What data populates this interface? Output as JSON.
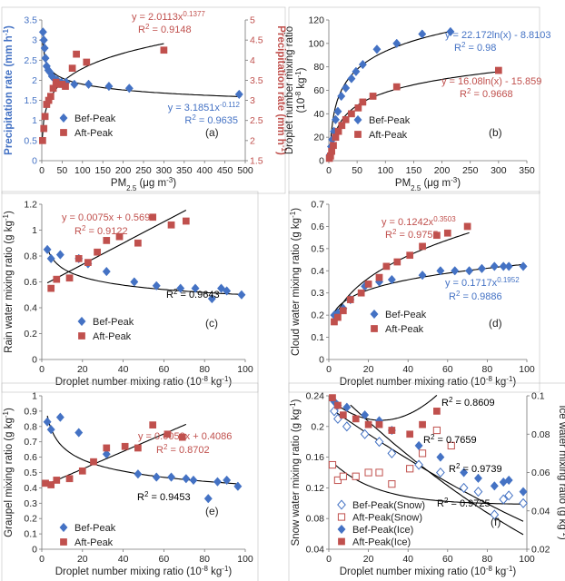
{
  "chart_data": [
    {
      "panel_label": "(a)",
      "type": "scatter",
      "x_label": "PM2.5 (μg m-3)",
      "x_ticks": [
        "0",
        "50",
        "100",
        "150",
        "200",
        "250",
        "300",
        "350",
        "400",
        "450",
        "500"
      ],
      "y_label": "Precipitation rate (mm h-1)",
      "y_ticks": [
        "0",
        "0.5",
        "1",
        "1.5",
        "2",
        "2.5",
        "3",
        "3.5"
      ],
      "y2_label": "Precipitation rate (mm h-1)",
      "y2_ticks": [
        "1.5",
        "2",
        "2.5",
        "3",
        "3.5",
        "4",
        "4.5",
        "5"
      ],
      "xlim": [
        0,
        500
      ],
      "ylim": [
        0,
        3.5
      ],
      "y2lim": [
        1.5,
        5
      ],
      "colors": {
        "bef": "#4472c4",
        "aft": "#c0504d"
      },
      "series": [
        {
          "name": "Bef-Peak",
          "marker": "diamond",
          "axis": "left",
          "x": [
            3,
            5,
            7,
            9,
            12,
            16,
            20,
            25,
            30,
            38,
            48,
            60,
            80,
            115,
            165,
            215,
            485
          ],
          "y": [
            3.2,
            3.0,
            2.8,
            2.55,
            2.35,
            2.25,
            2.2,
            2.1,
            2.05,
            2.0,
            1.95,
            1.95,
            1.9,
            1.9,
            1.85,
            1.8,
            1.65
          ]
        },
        {
          "name": "Aft-Peak",
          "marker": "square",
          "axis": "right",
          "x": [
            2,
            5,
            8,
            12,
            17,
            22,
            28,
            35,
            42,
            50,
            58,
            75,
            85,
            110,
            300
          ],
          "y": [
            2.0,
            2.3,
            2.6,
            2.9,
            3.0,
            3.1,
            3.3,
            3.45,
            3.4,
            3.4,
            3.35,
            3.8,
            4.15,
            3.95,
            4.25
          ]
        }
      ],
      "annotations": [
        {
          "text": "y = 2.0113x",
          "sup": "0.1377",
          "color": "#c0504d"
        },
        {
          "text": "R² = 0.9148",
          "color": "#c0504d"
        },
        {
          "text": "y = 3.1851x",
          "sup": "-0.112",
          "color": "#4472c4"
        },
        {
          "text": "R² = 0.9635",
          "color": "#4472c4"
        }
      ]
    },
    {
      "panel_label": "(b)",
      "type": "scatter",
      "x_label": "PM2.5 (μg m-3)",
      "x_ticks": [
        "0",
        "50",
        "100",
        "150",
        "200",
        "250",
        "300",
        "350"
      ],
      "y_label": "Droplet number mixing ratio",
      "y_label2": "(10-8 kg-1)",
      "y_ticks": [
        "0",
        "20",
        "40",
        "60",
        "80",
        "100",
        "120"
      ],
      "xlim": [
        0,
        350
      ],
      "ylim": [
        0,
        120
      ],
      "series": [
        {
          "name": "Bef-Peak",
          "marker": "diamond",
          "x": [
            2,
            4,
            6,
            9,
            12,
            16,
            22,
            30,
            40,
            48,
            60,
            85,
            120,
            165,
            215
          ],
          "y": [
            5,
            12,
            18,
            25,
            35,
            42,
            55,
            62,
            70,
            76,
            82,
            95,
            100,
            108,
            110
          ]
        },
        {
          "name": "Aft-Peak",
          "marker": "square",
          "x": [
            1,
            3,
            5,
            8,
            12,
            17,
            23,
            30,
            40,
            52,
            60,
            78,
            120,
            300
          ],
          "y": [
            2,
            4,
            8,
            13,
            20,
            25,
            30,
            35,
            40,
            45,
            50,
            55,
            63,
            77
          ]
        }
      ],
      "annotations": [
        {
          "text": "y = 22.172ln(x) - 8.8103",
          "color": "#4472c4"
        },
        {
          "text": "R² = 0.98",
          "color": "#4472c4"
        },
        {
          "text": "y = 16.08ln(x) - 15.859",
          "color": "#c0504d"
        },
        {
          "text": "R² = 0.9668",
          "color": "#c0504d"
        }
      ]
    },
    {
      "panel_label": "(c)",
      "type": "scatter",
      "x_label": "Droplet number mixing ratio (10-8 kg-1)",
      "x_ticks": [
        "0",
        "20",
        "40",
        "60",
        "80",
        "100"
      ],
      "y_label": "Rain water mixing ratio (g kg-1)",
      "y_ticks": [
        "0",
        "0.2",
        "0.4",
        "0.6",
        "0.8",
        "1",
        "1.2"
      ],
      "xlim": [
        0,
        110
      ],
      "ylim": [
        0,
        1.2
      ],
      "series": [
        {
          "name": "Bef-Peak",
          "marker": "diamond",
          "x": [
            3,
            5,
            10,
            20,
            25,
            35,
            50,
            62,
            75,
            83,
            92,
            97,
            100,
            108
          ],
          "y": [
            0.85,
            0.78,
            0.81,
            0.78,
            0.74,
            0.68,
            0.6,
            0.57,
            0.55,
            0.55,
            0.47,
            0.55,
            0.53,
            0.5
          ]
        },
        {
          "name": "Aft-Peak",
          "marker": "square",
          "x": [
            5,
            8,
            15,
            20,
            25,
            30,
            35,
            42,
            52,
            60,
            70,
            78
          ],
          "y": [
            0.55,
            0.62,
            0.63,
            0.78,
            0.75,
            0.83,
            0.92,
            0.95,
            0.9,
            1.1,
            1.04,
            1.07
          ]
        }
      ],
      "annotations": [
        {
          "text": "y = 0.0075x + 0.5695",
          "color": "#c0504d"
        },
        {
          "text": "R² = 0.9122",
          "color": "#c0504d"
        },
        {
          "text": "R² = 0.9643",
          "color": "#000000"
        }
      ]
    },
    {
      "panel_label": "(d)",
      "type": "scatter",
      "x_label": "Droplet number mixing ratio (10-8 kg-1)",
      "x_ticks": [
        "0",
        "20",
        "40",
        "60",
        "80",
        "100"
      ],
      "y_label": "Cloud water mixing ratio (g kg-1)",
      "y_ticks": [
        "0",
        "0.1",
        "0.2",
        "0.3",
        "0.4",
        "0.5",
        "0.6",
        "0.7"
      ],
      "xlim": [
        0,
        110
      ],
      "ylim": [
        0,
        0.7
      ],
      "series": [
        {
          "name": "Bef-Peak",
          "marker": "diamond",
          "x": [
            3,
            5,
            8,
            12,
            20,
            28,
            35,
            52,
            62,
            70,
            78,
            85,
            92,
            97,
            100,
            108
          ],
          "y": [
            0.2,
            0.21,
            0.23,
            0.27,
            0.33,
            0.35,
            0.36,
            0.38,
            0.4,
            0.4,
            0.4,
            0.41,
            0.42,
            0.42,
            0.42,
            0.42
          ]
        },
        {
          "name": "Aft-Peak",
          "marker": "square",
          "x": [
            3,
            5,
            8,
            12,
            18,
            22,
            28,
            32,
            38,
            45,
            52,
            60,
            66,
            77
          ],
          "y": [
            0.17,
            0.19,
            0.22,
            0.27,
            0.3,
            0.34,
            0.37,
            0.42,
            0.44,
            0.47,
            0.51,
            0.56,
            0.57,
            0.6
          ]
        }
      ],
      "annotations": [
        {
          "text": "y = 0.1242x",
          "sup": "0.3503",
          "color": "#c0504d"
        },
        {
          "text": "R² = 0.9755",
          "color": "#c0504d"
        },
        {
          "text": "y = 0.1717x",
          "sup": "0.1952",
          "color": "#4472c4"
        },
        {
          "text": "R² = 0.9886",
          "color": "#4472c4"
        }
      ]
    },
    {
      "panel_label": "(e)",
      "type": "scatter",
      "x_label": "Droplet number mixing ratio (10-8 kg-1)",
      "x_ticks": [
        "0",
        "20",
        "40",
        "60",
        "80",
        "100"
      ],
      "y_label": "Graupel mixing ratio (g kg-1)",
      "y_ticks": [
        "0",
        "0.1",
        "0.2",
        "0.3",
        "0.4",
        "0.5",
        "0.6",
        "0.7",
        "0.8",
        "0.9",
        "1"
      ],
      "xlim": [
        0,
        110
      ],
      "ylim": [
        0,
        1
      ],
      "series": [
        {
          "name": "Bef-Peak",
          "marker": "diamond",
          "x": [
            3,
            5,
            10,
            20,
            35,
            52,
            62,
            70,
            78,
            82,
            90,
            95,
            100,
            106
          ],
          "y": [
            0.83,
            0.78,
            0.86,
            0.76,
            0.62,
            0.49,
            0.47,
            0.47,
            0.46,
            0.45,
            0.33,
            0.44,
            0.45,
            0.41
          ]
        },
        {
          "name": "Aft-Peak",
          "marker": "square",
          "x": [
            2,
            5,
            8,
            15,
            22,
            28,
            35,
            45,
            52,
            60,
            68,
            76
          ],
          "y": [
            0.43,
            0.42,
            0.45,
            0.46,
            0.51,
            0.57,
            0.66,
            0.67,
            0.66,
            0.81,
            0.75,
            0.73
          ]
        }
      ],
      "annotations": [
        {
          "text": "y = 0.0052x + 0.4086",
          "color": "#c0504d"
        },
        {
          "text": "R² = 0.8702",
          "color": "#c0504d"
        },
        {
          "text": "R² = 0.9453",
          "color": "#000000"
        }
      ]
    },
    {
      "panel_label": "(f)",
      "type": "scatter",
      "x_label": "Droplet number mixing ratio (10-8 kg-1)",
      "x_ticks": [
        "0",
        "20",
        "40",
        "60",
        "80",
        "100"
      ],
      "y_label": "Snow water mixing ratio (g kg-1)",
      "y_ticks": [
        "0.04",
        "0.08",
        "0.12",
        "0.16",
        "0.2",
        "0.24"
      ],
      "y2_label": "Ice water mixing ratio (g kg-1)",
      "y2_ticks": [
        "0.02",
        "0.04",
        "0.06",
        "0.08",
        "0.1"
      ],
      "xlim": [
        0,
        110
      ],
      "ylim": [
        0.04,
        0.24
      ],
      "y2lim": [
        0.02,
        0.1
      ],
      "series": [
        {
          "name": "Bef-Peak(Snow)",
          "marker": "diamond-open",
          "axis": "left",
          "x": [
            3,
            5,
            10,
            20,
            28,
            35,
            50,
            62,
            75,
            83,
            92,
            97,
            100,
            108
          ],
          "y": [
            0.22,
            0.21,
            0.2,
            0.19,
            0.18,
            0.165,
            0.15,
            0.14,
            0.12,
            0.115,
            0.085,
            0.105,
            0.11,
            0.1
          ]
        },
        {
          "name": "Aft-Peak(Snow)",
          "marker": "square-open",
          "axis": "left",
          "x": [
            2,
            5,
            8,
            15,
            22,
            28,
            35,
            45,
            52,
            60,
            68
          ],
          "y": [
            0.15,
            0.13,
            0.135,
            0.135,
            0.14,
            0.14,
            0.125,
            0.145,
            0.165,
            0.195,
            0.175
          ]
        },
        {
          "name": "Bef-Peak(Ice)",
          "marker": "diamond",
          "axis": "right",
          "x": [
            3,
            5,
            10,
            20,
            28,
            35,
            50,
            62,
            75,
            83,
            92,
            97,
            100,
            108
          ],
          "y": [
            0.097,
            0.095,
            0.094,
            0.09,
            0.087,
            0.082,
            0.074,
            0.068,
            0.06,
            0.057,
            0.053,
            0.055,
            0.056,
            0.05
          ]
        },
        {
          "name": "Aft-Peak(Ice)",
          "marker": "square",
          "axis": "right",
          "x": [
            2,
            5,
            8,
            15,
            22,
            28,
            35,
            45,
            52,
            60
          ],
          "y": [
            0.099,
            0.095,
            0.09,
            0.088,
            0.085,
            0.085,
            0.082,
            0.08,
            0.085,
            0.092
          ]
        }
      ],
      "annotations": [
        {
          "text": "R² = 0.8609",
          "color": "#000000"
        },
        {
          "text": "R² = 0.7659",
          "color": "#000000"
        },
        {
          "text": "R² = 0.9739",
          "color": "#000000"
        },
        {
          "text": "R² = 0.9725",
          "color": "#000000"
        }
      ]
    }
  ]
}
